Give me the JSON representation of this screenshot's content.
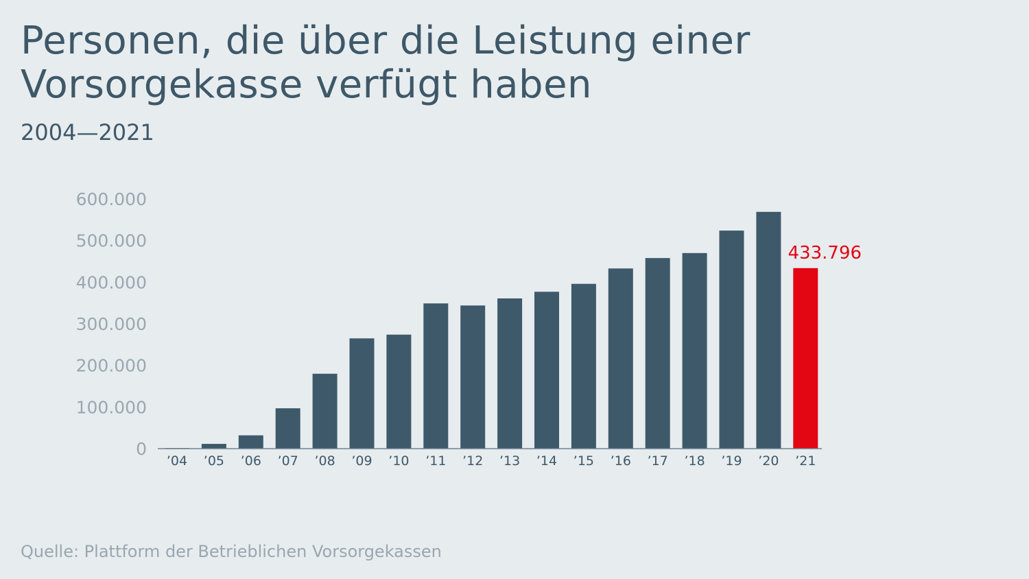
{
  "title": "Personen, die über die Leistung einer Vorsorgekasse verfügt haben",
  "subtitle": "2004—2021",
  "source": "Quelle: Plattform der Betrieblichen Vorsorgekassen",
  "colors": {
    "bar": "#3e5a6a",
    "highlight": "#e30613",
    "axis_text": "#9aa7b0",
    "category_text": "#3e5868"
  },
  "chart_data": {
    "type": "bar",
    "categories": [
      "’04",
      "’05",
      "’06",
      "’07",
      "’08",
      "’09",
      "’10",
      "’11",
      "’12",
      "’13",
      "’14",
      "’15",
      "’16",
      "’17",
      "’18",
      "’19",
      "’20",
      "’21"
    ],
    "values": [
      1500,
      11500,
      32000,
      97000,
      180000,
      265000,
      274000,
      349000,
      344000,
      361000,
      377000,
      396000,
      433000,
      458000,
      470000,
      524000,
      569000,
      433796
    ],
    "ylim": [
      0,
      600000
    ],
    "yticks": [
      0,
      100000,
      200000,
      300000,
      400000,
      500000,
      600000
    ],
    "ytick_labels": [
      "0",
      "100.000",
      "200.000",
      "300.000",
      "400.000",
      "500.000",
      "600.000"
    ],
    "highlight_index": 17,
    "data_labels": [
      {
        "index": 17,
        "text": "433.796"
      }
    ],
    "grid": false
  }
}
